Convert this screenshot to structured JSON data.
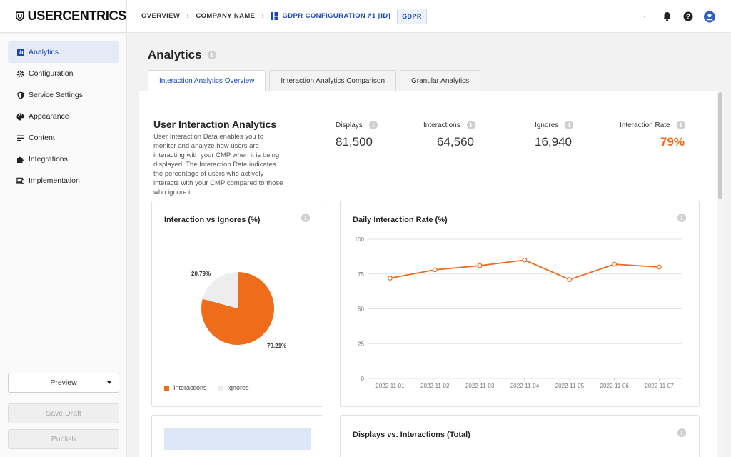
{
  "app": {
    "logo_text": "USERCENTRICS"
  },
  "breadcrumb": {
    "overview": "OVERVIEW",
    "company": "COMPANY NAME",
    "config": "GDPR CONFIGURATION #1 [ID]",
    "badge": "GDPR"
  },
  "topbar": {
    "icons": [
      "bell-icon",
      "help-icon",
      "user-avatar-icon"
    ]
  },
  "sidebar": {
    "items": [
      {
        "label": "Analytics",
        "icon": "bar-chart-icon",
        "active": true
      },
      {
        "label": "Configuration",
        "icon": "gear-icon"
      },
      {
        "label": "Service Settings",
        "icon": "shield-icon"
      },
      {
        "label": "Appearance",
        "icon": "palette-icon"
      },
      {
        "label": "Content",
        "icon": "lines-icon"
      },
      {
        "label": "Integrations",
        "icon": "puzzle-icon"
      },
      {
        "label": "Implementation",
        "icon": "devices-icon"
      }
    ],
    "preview_label": "Preview",
    "save_draft_label": "Save Draft",
    "publish_label": "Publish"
  },
  "page": {
    "title": "Analytics"
  },
  "tabs": [
    {
      "label": "Interaction Analytics Overview",
      "active": true
    },
    {
      "label": "Interaction Analytics Comparison"
    },
    {
      "label": "Granular Analytics"
    }
  ],
  "summary": {
    "title": "User Interaction Analytics",
    "description": "User Interaction Data enables you to monitor and analyze how users are interacting with your CMP when it is being displayed. The Interaction Rate indicates the percentage of users who actively interacts with your CMP compared to those who ignore it.",
    "stats": [
      {
        "label": "Displays",
        "value": "81,500"
      },
      {
        "label": "Interactions",
        "value": "64,560"
      },
      {
        "label": "Ignores",
        "value": "16,940"
      },
      {
        "label": "Interaction Rate",
        "value": "79%"
      }
    ]
  },
  "colors": {
    "accent": "#1a47b8",
    "orange": "#ef6c1a",
    "ignore": "#ededed"
  },
  "pie_card": {
    "title": "Interaction vs Ignores (%)"
  },
  "line_card": {
    "title": "Daily Interaction Rate (%)"
  },
  "totals_card": {
    "title": "Displays vs. Interactions (Total)"
  },
  "chart_data": [
    {
      "type": "pie",
      "title": "Interaction vs Ignores (%)",
      "categories": [
        "Interactions",
        "Ignores"
      ],
      "values": [
        79.21,
        20.79
      ],
      "labels": [
        "79.21%",
        "20.79%"
      ],
      "legend": "bottom-left"
    },
    {
      "type": "line",
      "title": "Daily Interaction Rate (%)",
      "x": [
        "2022-11-01",
        "2022-11-02",
        "2022-11-03",
        "2022-11-04",
        "2022-11-05",
        "2022-11-06",
        "2022-11-07"
      ],
      "values": [
        72,
        78,
        81,
        85,
        71,
        82,
        80
      ],
      "ylim": [
        0,
        100
      ],
      "yticks": [
        "0",
        "25",
        "50",
        "75",
        "100"
      ],
      "grid": true
    }
  ]
}
